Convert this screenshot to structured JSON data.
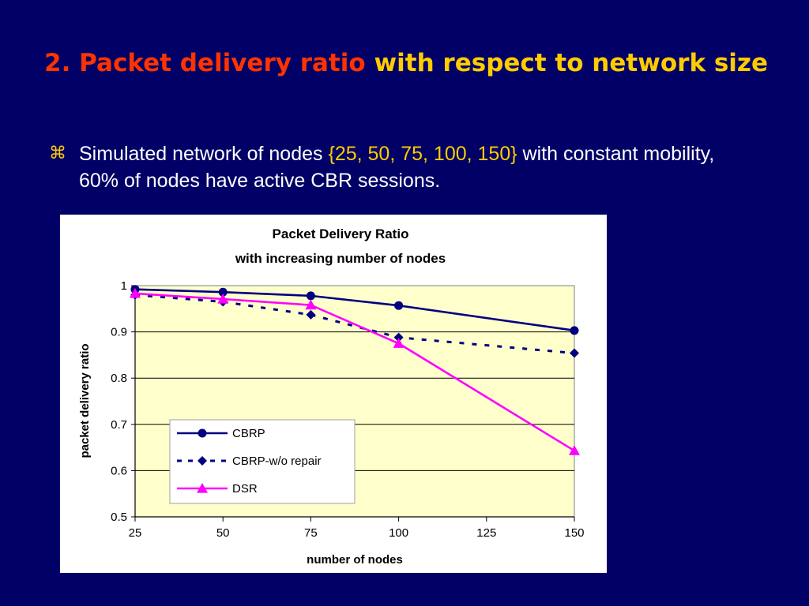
{
  "slide": {
    "title_part1": "2. Packet delivery ratio",
    "title_part2": "with respect to network size",
    "bullet_glyph": "⌘",
    "bullet": {
      "text1": "Simulated network of nodes ",
      "highlight": "{25, 50, 75, 100, 150}",
      "text2": " with constant mobility, 60% of nodes have active CBR sessions."
    }
  },
  "colors": {
    "background": "#000066",
    "title_red": "#FF3300",
    "title_yellow": "#FFCC00",
    "plot_background": "#FFFFCC",
    "cbrp": "#000080",
    "cbrp_no_repair": "#000080",
    "dsr": "#FF00FF"
  },
  "chart_data": {
    "type": "line",
    "title": "Packet Delivery Ratio",
    "subtitle": "with increasing number of nodes",
    "xlabel": "number of nodes",
    "ylabel": "packet delivery ratio",
    "xlim": [
      25,
      150
    ],
    "ylim": [
      0.5,
      1
    ],
    "x_ticks": [
      "25",
      "50",
      "75",
      "100",
      "125",
      "150"
    ],
    "y_ticks": [
      "0.5",
      "0.6",
      "0.7",
      "0.8",
      "0.9",
      "1"
    ],
    "grid": "horizontal",
    "legend_position": "lower-left",
    "x": [
      25,
      50,
      75,
      100,
      150
    ],
    "series": [
      {
        "name": "CBRP",
        "values": [
          0.992,
          0.986,
          0.978,
          0.957,
          0.903
        ],
        "marker": "circle",
        "line": "solid"
      },
      {
        "name": "CBRP-w/o repair",
        "values": [
          0.98,
          0.965,
          0.937,
          0.888,
          0.854
        ],
        "marker": "diamond",
        "line": "dashed"
      },
      {
        "name": "DSR",
        "values": [
          0.983,
          0.971,
          0.958,
          0.875,
          0.643
        ],
        "marker": "triangle",
        "line": "solid"
      }
    ]
  }
}
